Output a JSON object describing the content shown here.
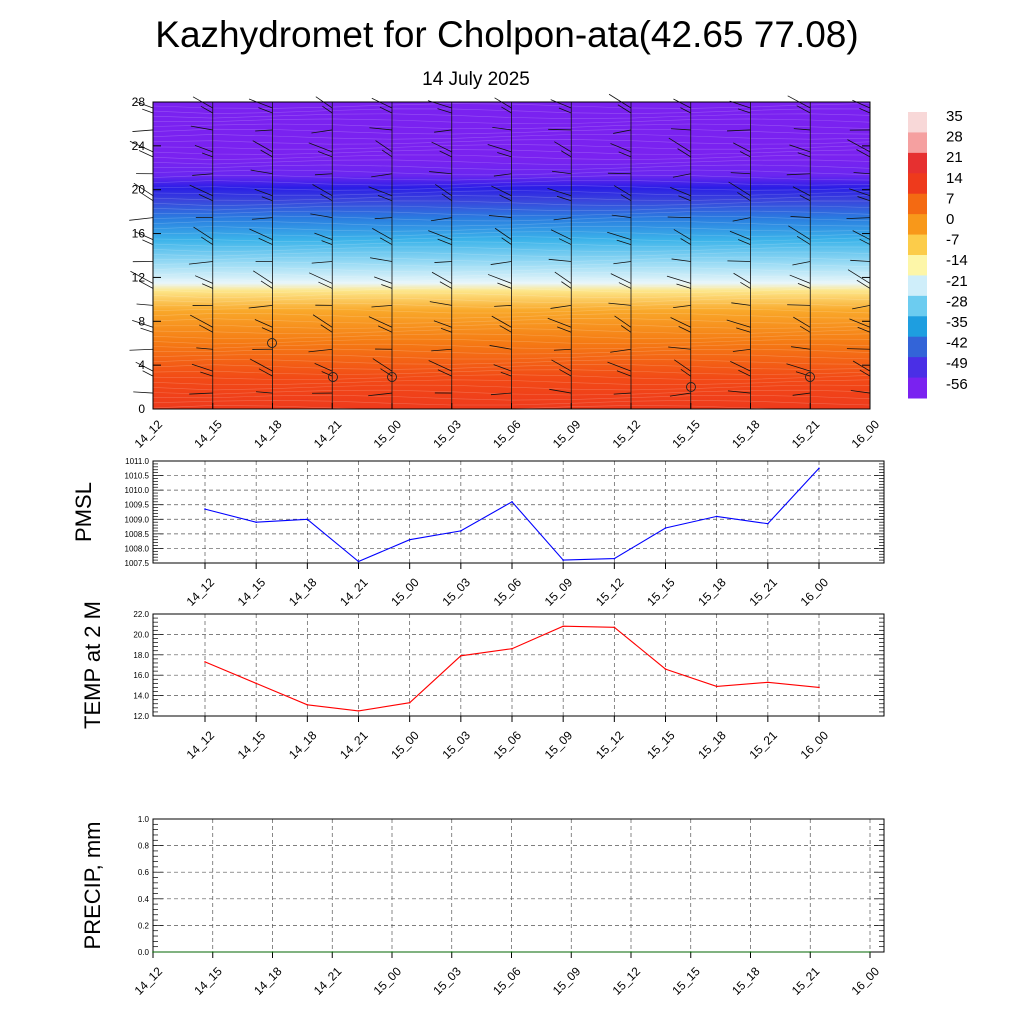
{
  "title": "Kazhydromet for Cholpon-ata(42.65 77.08)",
  "subtitle": "14 July 2025",
  "time_labels": [
    "14_12",
    "14_15",
    "14_18",
    "14_21",
    "15_00",
    "15_03",
    "15_06",
    "15_09",
    "15_12",
    "15_15",
    "15_18",
    "15_21",
    "16_00"
  ],
  "chart_data": [
    {
      "type": "heatmap",
      "variable": "temperature",
      "x": [
        "14_12",
        "14_15",
        "14_18",
        "14_21",
        "15_00",
        "15_03",
        "15_06",
        "15_09",
        "15_12",
        "15_15",
        "15_18",
        "15_21",
        "16_00"
      ],
      "yticks": [
        "0",
        "4",
        "8",
        "12",
        "16",
        "20",
        "24",
        "28"
      ],
      "ylim": [
        0,
        28
      ],
      "colorbar_labels": [
        "35",
        "28",
        "21",
        "14",
        "7",
        "0",
        "-7",
        "-14",
        "-21",
        "-28",
        "-35",
        "-42",
        "-49",
        "-56"
      ],
      "colorbar_colors": [
        "#f8d8d8",
        "#f5a0a0",
        "#e63030",
        "#ee3a1c",
        "#f46a12",
        "#f8981a",
        "#fccc4a",
        "#fdf6a8",
        "#cfeefa",
        "#6cccf0",
        "#1e9ee0",
        "#3364d8",
        "#4a2fe6",
        "#7a22f0"
      ],
      "wind_barbs": true,
      "calm_markers": true
    },
    {
      "type": "line",
      "ylabel": "PMSL",
      "x": [
        "14_12",
        "14_15",
        "14_18",
        "14_21",
        "15_00",
        "15_03",
        "15_06",
        "15_09",
        "15_12",
        "15_15",
        "15_18",
        "15_21",
        "16_00"
      ],
      "values": [
        1009.35,
        1008.9,
        1009.0,
        1007.55,
        1008.3,
        1008.6,
        1009.6,
        1007.6,
        1007.65,
        1008.7,
        1009.1,
        1008.85,
        1010.75
      ],
      "ylim": [
        1007.5,
        1011.0
      ],
      "yticks": [
        "1011.0",
        "1010.5",
        "1010.0",
        "1009.5",
        "1009.0",
        "1008.5",
        "1008.0",
        "1007.5"
      ],
      "color": "#0000ff",
      "grid": true
    },
    {
      "type": "line",
      "ylabel": "TEMP at 2 M",
      "x": [
        "14_12",
        "14_15",
        "14_18",
        "14_21",
        "15_00",
        "15_03",
        "15_06",
        "15_09",
        "15_12",
        "15_15",
        "15_18",
        "15_21",
        "16_00"
      ],
      "values": [
        17.3,
        15.2,
        13.1,
        12.5,
        13.3,
        17.9,
        18.6,
        20.8,
        20.7,
        16.6,
        14.9,
        15.3,
        14.8
      ],
      "ylim": [
        12.0,
        22.0
      ],
      "yticks": [
        "22.0",
        "20.0",
        "18.0",
        "16.0",
        "14.0",
        "12.0"
      ],
      "color": "#ff0000",
      "grid": true
    },
    {
      "type": "line",
      "ylabel": "PRECIP, mm",
      "x": [
        "14_12",
        "14_15",
        "14_18",
        "14_21",
        "15_00",
        "15_03",
        "15_06",
        "15_09",
        "15_12",
        "15_15",
        "15_18",
        "15_21",
        "16_00"
      ],
      "values": [
        0,
        0,
        0,
        0,
        0,
        0,
        0,
        0,
        0,
        0,
        0,
        0,
        0
      ],
      "ylim": [
        0.0,
        1.0
      ],
      "yticks": [
        "1.0",
        "0.8",
        "0.6",
        "0.4",
        "0.2",
        "0.0"
      ],
      "color": "#006400",
      "grid": true
    }
  ]
}
